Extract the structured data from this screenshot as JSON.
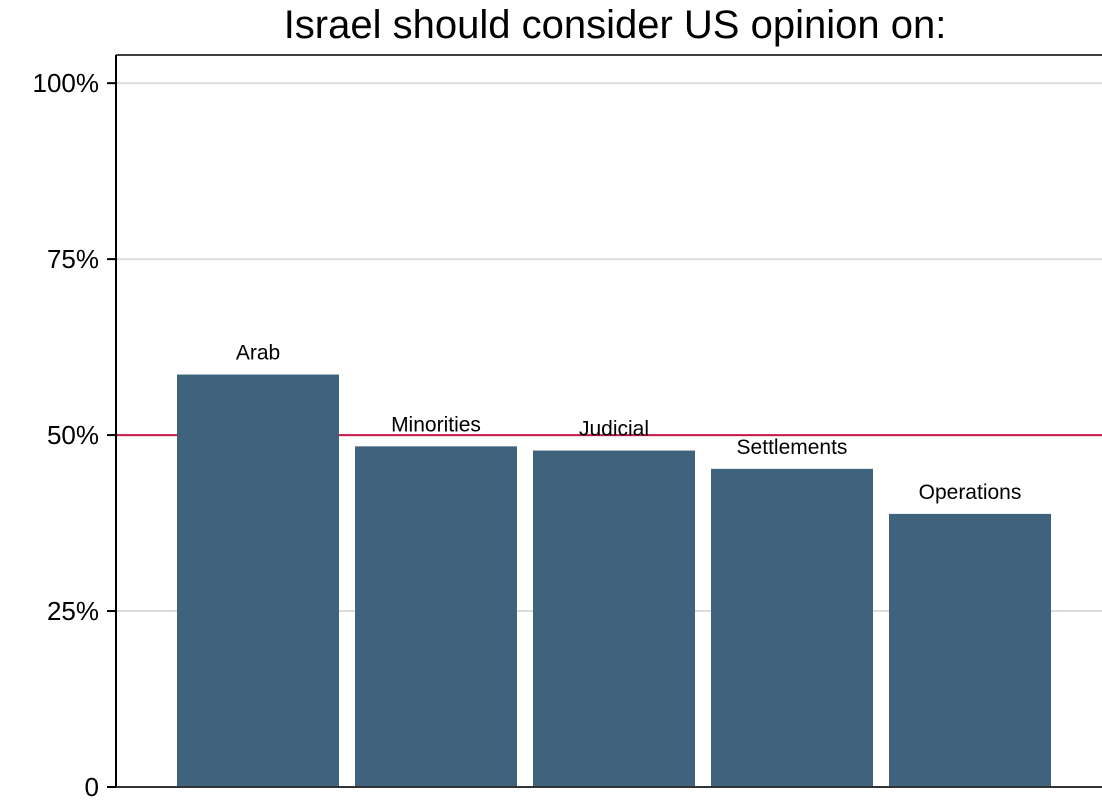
{
  "chart_data": {
    "type": "bar",
    "title": "Israel should consider US opinion on:",
    "xlabel": "",
    "ylabel": "",
    "categories": [
      "Arab",
      "Minorities",
      "Judicial",
      "Settlements",
      "Operations"
    ],
    "values": [
      58.6,
      48.4,
      47.8,
      45.2,
      38.8
    ],
    "ylim": [
      0,
      104
    ],
    "yticks": [
      {
        "value": 0,
        "label": "0"
      },
      {
        "value": 25,
        "label": "25%"
      },
      {
        "value": 50,
        "label": "50%"
      },
      {
        "value": 75,
        "label": "75%"
      },
      {
        "value": 100,
        "label": "100%"
      }
    ],
    "reference_line": {
      "value": 50,
      "color": "#c8184a"
    },
    "grid": true,
    "bar_color": "#3f637c",
    "grid_color": "#dcdcdc"
  }
}
